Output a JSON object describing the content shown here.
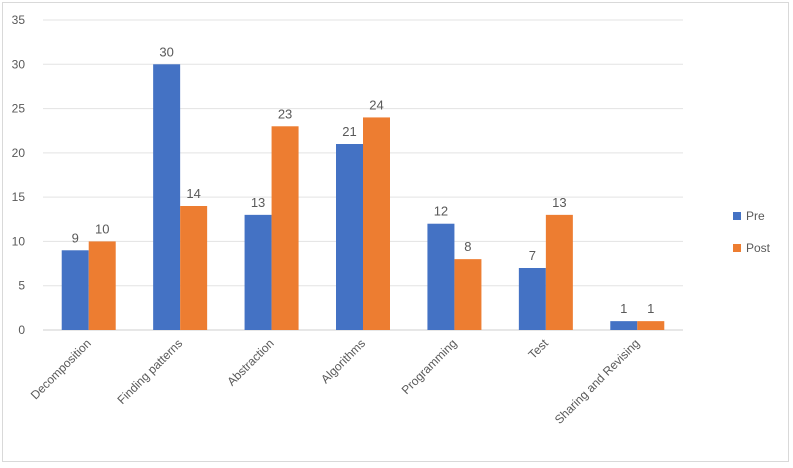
{
  "chart_data": {
    "type": "bar",
    "title": "",
    "xlabel": "",
    "ylabel": "",
    "categories": [
      "Decomposition",
      "Finding patterns",
      "Abstraction",
      "Algorithms",
      "Programming",
      "Test",
      "Sharing and Revising"
    ],
    "series": [
      {
        "name": "Pre",
        "color": "#4472c4",
        "values": [
          9,
          30,
          13,
          21,
          12,
          7,
          1
        ]
      },
      {
        "name": "Post",
        "color": "#ed7d31",
        "values": [
          10,
          14,
          23,
          24,
          8,
          13,
          1
        ]
      }
    ],
    "ylim": [
      0,
      35
    ],
    "yticks": [
      0,
      5,
      10,
      15,
      20,
      25,
      30,
      35
    ],
    "grid": true,
    "data_labels": true,
    "legend_position": "right"
  }
}
